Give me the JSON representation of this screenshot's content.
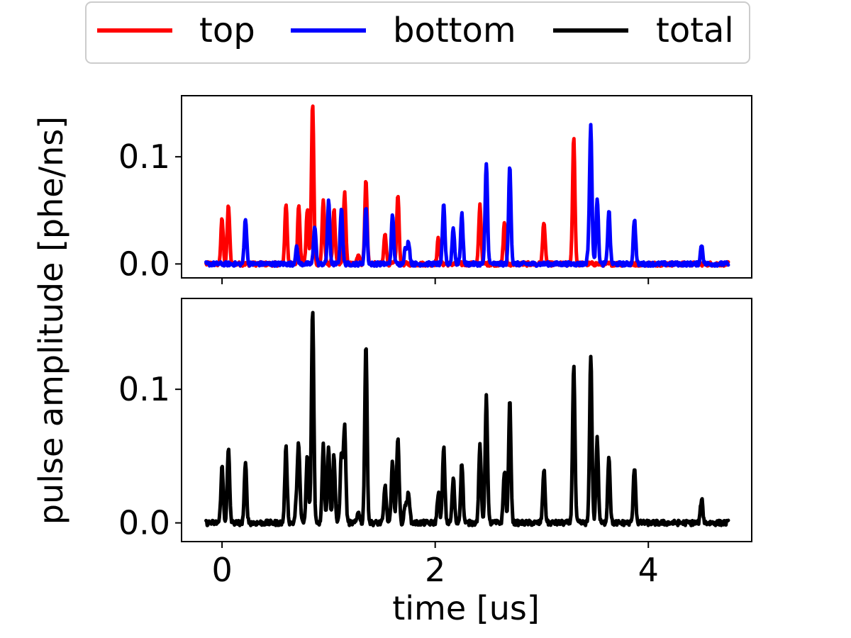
{
  "chart_data": {
    "type": "line",
    "xlabel": "time [us]",
    "ylabel": "pulse amplitude [phe/ns]",
    "xlim": [
      -0.38,
      4.97
    ],
    "xticks": [
      0,
      2,
      4
    ],
    "legend": {
      "position": "top-center",
      "entries": [
        {
          "name": "top",
          "color": "#ff0000"
        },
        {
          "name": "bottom",
          "color": "#0000ff"
        },
        {
          "name": "total",
          "color": "#000000"
        }
      ]
    },
    "panels": [
      {
        "ylim": [
          -0.013,
          0.157
        ],
        "yticks": [
          0.0,
          0.1
        ],
        "ytick_labels": [
          "0.0",
          "0.1"
        ],
        "show_xtick_labels": false,
        "series": [
          {
            "name": "top",
            "color": "#ff0000",
            "baseline": 0.0,
            "x_range": [
              -0.15,
              4.75
            ],
            "peaks": [
              [
                0.0,
                0.042
              ],
              [
                0.06,
                0.055
              ],
              [
                0.6,
                0.056
              ],
              [
                0.72,
                0.056
              ],
              [
                0.8,
                0.05
              ],
              [
                0.85,
                0.15
              ],
              [
                0.95,
                0.06
              ],
              [
                1.05,
                0.051
              ],
              [
                1.15,
                0.067
              ],
              [
                1.35,
                0.078
              ],
              [
                1.28,
                0.01
              ],
              [
                1.53,
                0.029
              ],
              [
                1.65,
                0.064
              ],
              [
                2.03,
                0.024
              ],
              [
                2.42,
                0.055
              ],
              [
                2.65,
                0.039
              ],
              [
                3.02,
                0.04
              ],
              [
                3.3,
                0.118
              ]
            ]
          },
          {
            "name": "bottom",
            "color": "#0000ff",
            "baseline": 0.0,
            "x_range": [
              -0.15,
              4.75
            ],
            "peaks": [
              [
                0.22,
                0.043
              ],
              [
                0.7,
                0.015
              ],
              [
                0.87,
                0.036
              ],
              [
                1.0,
                0.058
              ],
              [
                1.12,
                0.053
              ],
              [
                1.35,
                0.054
              ],
              [
                1.6,
                0.046
              ],
              [
                1.72,
                0.014
              ],
              [
                1.75,
                0.021
              ],
              [
                2.08,
                0.055
              ],
              [
                2.17,
                0.034
              ],
              [
                2.25,
                0.046
              ],
              [
                2.48,
                0.094
              ],
              [
                2.7,
                0.092
              ],
              [
                3.44,
                0.012
              ],
              [
                3.46,
                0.126
              ],
              [
                3.52,
                0.062
              ],
              [
                3.63,
                0.05
              ],
              [
                3.87,
                0.042
              ],
              [
                4.5,
                0.018
              ]
            ]
          }
        ]
      },
      {
        "ylim": [
          -0.014,
          0.168
        ],
        "yticks": [
          0.0,
          0.1
        ],
        "ytick_labels": [
          "0.0",
          "0.1"
        ],
        "show_xtick_labels": true,
        "xtick_labels": [
          "0",
          "2",
          "4"
        ],
        "series": [
          {
            "name": "total",
            "color": "#000000",
            "baseline": 0.0,
            "x_range": [
              -0.15,
              4.75
            ],
            "peaks": [
              [
                0.0,
                0.042
              ],
              [
                0.06,
                0.055
              ],
              [
                0.22,
                0.044
              ],
              [
                0.6,
                0.056
              ],
              [
                0.7,
                0.017
              ],
              [
                0.72,
                0.056
              ],
              [
                0.8,
                0.05
              ],
              [
                0.85,
                0.16
              ],
              [
                0.95,
                0.058
              ],
              [
                1.0,
                0.057
              ],
              [
                1.05,
                0.051
              ],
              [
                1.12,
                0.053
              ],
              [
                1.15,
                0.072
              ],
              [
                1.28,
                0.009
              ],
              [
                1.35,
                0.134
              ],
              [
                1.53,
                0.028
              ],
              [
                1.6,
                0.046
              ],
              [
                1.65,
                0.065
              ],
              [
                1.72,
                0.014
              ],
              [
                1.75,
                0.023
              ],
              [
                2.03,
                0.023
              ],
              [
                2.08,
                0.056
              ],
              [
                2.17,
                0.033
              ],
              [
                2.25,
                0.045
              ],
              [
                2.42,
                0.058
              ],
              [
                2.48,
                0.094
              ],
              [
                2.65,
                0.039
              ],
              [
                2.7,
                0.091
              ],
              [
                3.02,
                0.04
              ],
              [
                3.3,
                0.118
              ],
              [
                3.46,
                0.125
              ],
              [
                3.52,
                0.063
              ],
              [
                3.63,
                0.05
              ],
              [
                3.87,
                0.042
              ],
              [
                4.5,
                0.018
              ]
            ]
          }
        ]
      }
    ]
  }
}
